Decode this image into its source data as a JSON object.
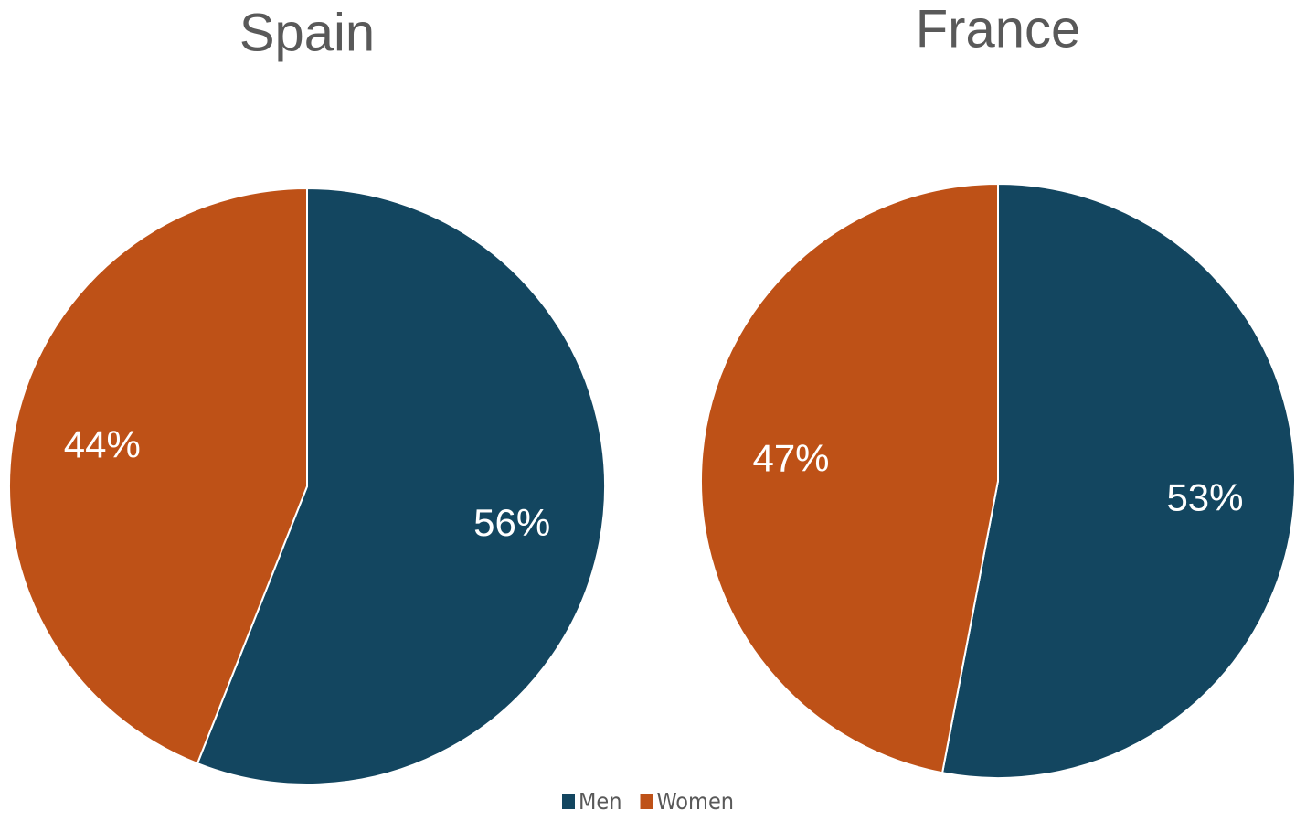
{
  "chart_data": [
    {
      "type": "pie",
      "title": "Spain",
      "categories": [
        "Men",
        "Women"
      ],
      "values": [
        56,
        44
      ],
      "value_labels": [
        "56%",
        "44%"
      ],
      "colors": [
        "#134660",
        "#be5117"
      ]
    },
    {
      "type": "pie",
      "title": "France",
      "categories": [
        "Men",
        "Women"
      ],
      "values": [
        53,
        47
      ],
      "value_labels": [
        "53%",
        "47%"
      ],
      "colors": [
        "#134660",
        "#be5117"
      ]
    }
  ]
}
